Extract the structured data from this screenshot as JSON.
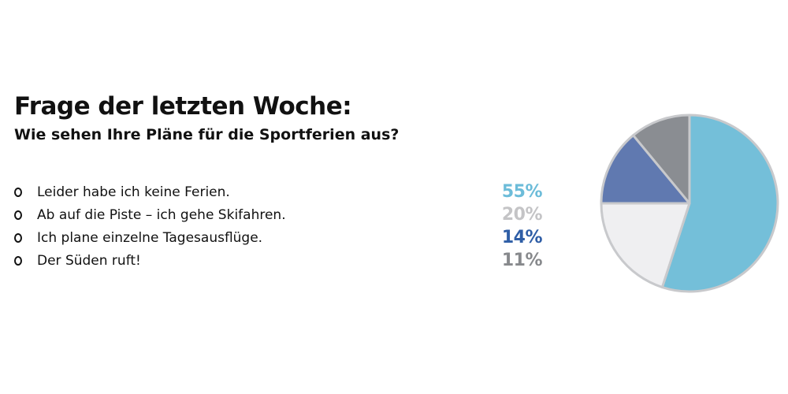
{
  "header": {
    "title": "Frage der letzten Woche:",
    "subtitle": "Wie sehen Ihre Pläne für die Sportferien aus?"
  },
  "options": [
    {
      "label": "Leider habe ich keine Ferien.",
      "pct": "55%",
      "color": "#6cbcd9"
    },
    {
      "label": "Ab auf die Piste – ich gehe Skifahren.",
      "pct": "20%",
      "color": "#c4c4c6"
    },
    {
      "label": "Ich plane einzelne Tagesausflüge.",
      "pct": "14%",
      "color": "#2f5ea6"
    },
    {
      "label": "Der Süden ruft!",
      "pct": "11%",
      "color": "#87898c"
    }
  ],
  "chart_data": {
    "type": "pie",
    "categories": [
      "Leider habe ich keine Ferien.",
      "Ab auf die Piste – ich gehe Skifahren.",
      "Ich plane einzelne Tagesausflüge.",
      "Der Süden ruft!"
    ],
    "values": [
      55,
      20,
      14,
      11
    ],
    "colors": [
      "#74bfd9",
      "#efeff1",
      "#6079b0",
      "#8a8d92"
    ],
    "start": "top, clockwise",
    "legend": "left"
  }
}
